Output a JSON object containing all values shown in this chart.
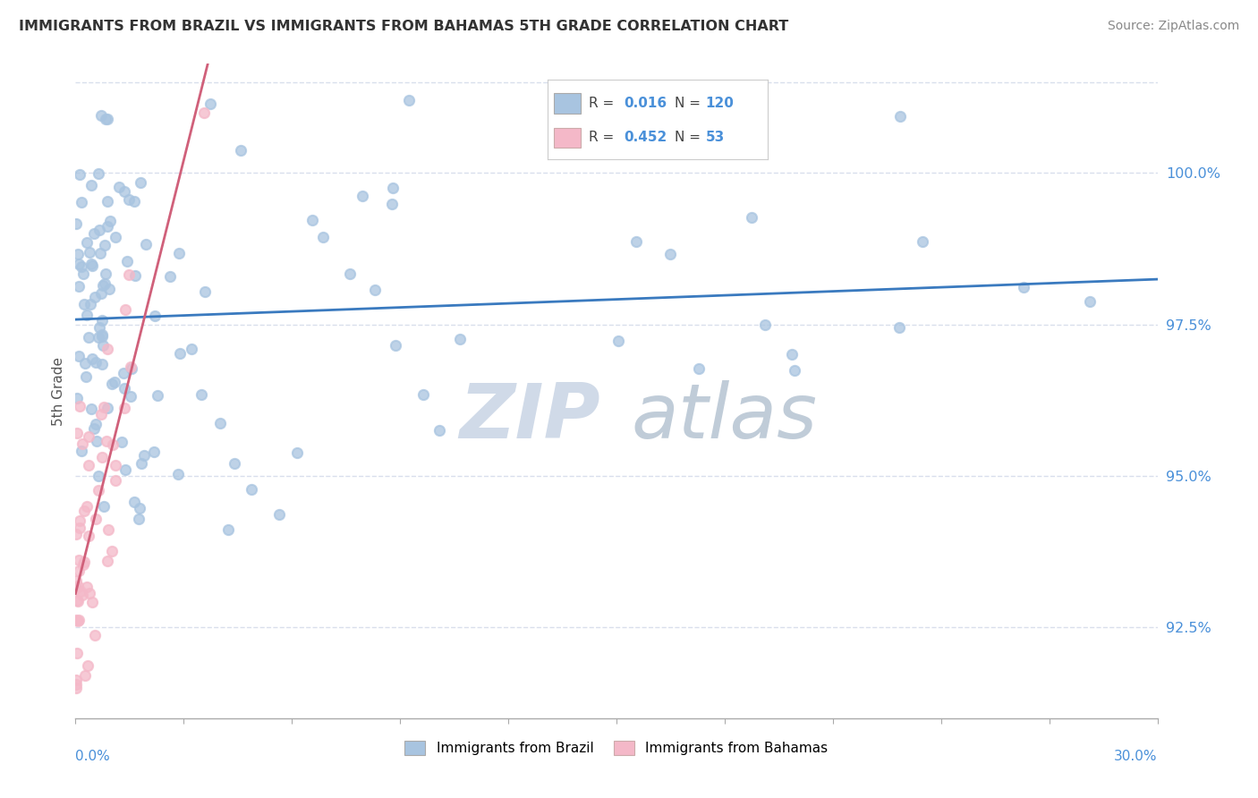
{
  "title": "IMMIGRANTS FROM BRAZIL VS IMMIGRANTS FROM BAHAMAS 5TH GRADE CORRELATION CHART",
  "source": "Source: ZipAtlas.com",
  "ylabel": "5th Grade",
  "xlim": [
    0.0,
    30.0
  ],
  "ylim": [
    91.0,
    101.8
  ],
  "ytick_values": [
    92.5,
    95.0,
    97.5,
    100.0
  ],
  "legend_brazil_R": "0.016",
  "legend_brazil_N": "120",
  "legend_bahamas_R": "0.452",
  "legend_bahamas_N": "53",
  "brazil_color": "#a8c4e0",
  "bahamas_color": "#f4b8c8",
  "brazil_line_color": "#3a7abf",
  "bahamas_line_color": "#d0607a",
  "axis_color": "#4a90d9",
  "title_color": "#333333",
  "grid_color": "#d0d8e8",
  "watermark_zip_color": "#d0dae8",
  "watermark_atlas_color": "#c0ccd8"
}
